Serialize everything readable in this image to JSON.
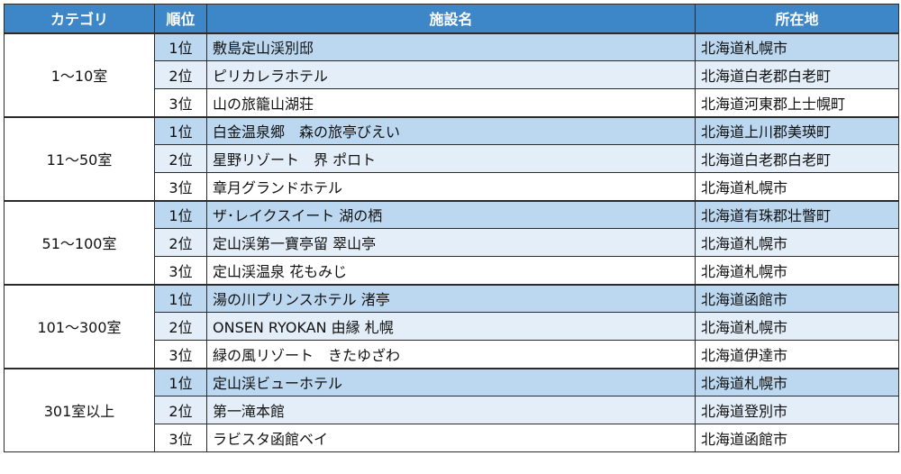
{
  "table": {
    "headers": [
      "カテゴリ",
      "順位",
      "施設名",
      "所在地"
    ],
    "groups": [
      {
        "category": "1～10室",
        "rows": [
          {
            "rank": "1位",
            "name": "敷島定山渓別邸",
            "location": "北海道札幌市"
          },
          {
            "rank": "2位",
            "name": "ピリカレラホテル",
            "location": "北海道白老郡白老町"
          },
          {
            "rank": "3位",
            "name": "山の旅籠山湖荘",
            "location": "北海道河東郡上士幌町"
          }
        ]
      },
      {
        "category": "11～50室",
        "rows": [
          {
            "rank": "1位",
            "name": "白金温泉郷　森の旅亭びえい",
            "location": "北海道上川郡美瑛町"
          },
          {
            "rank": "2位",
            "name": "星野リゾート　界 ポロト",
            "location": "北海道白老郡白老町"
          },
          {
            "rank": "3位",
            "name": "章月グランドホテル",
            "location": "北海道札幌市"
          }
        ]
      },
      {
        "category": "51～100室",
        "rows": [
          {
            "rank": "1位",
            "name": "ザ･レイクスイート 湖の栖",
            "location": "北海道有珠郡壮瞥町"
          },
          {
            "rank": "2位",
            "name": "定山渓第一寶亭留 翠山亭",
            "location": "北海道札幌市"
          },
          {
            "rank": "3位",
            "name": "定山渓温泉 花もみじ",
            "location": "北海道札幌市"
          }
        ]
      },
      {
        "category": "101～300室",
        "rows": [
          {
            "rank": "1位",
            "name": "湯の川プリンスホテル 渚亭",
            "location": "北海道函館市"
          },
          {
            "rank": "2位",
            "name": "ONSEN RYOKAN 由縁 札幌",
            "location": "北海道札幌市"
          },
          {
            "rank": "3位",
            "name": "緑の風リゾート　きたゆざわ",
            "location": "北海道伊達市"
          }
        ]
      },
      {
        "category": "301室以上",
        "rows": [
          {
            "rank": "1位",
            "name": "定山渓ビューホテル",
            "location": "北海道札幌市"
          },
          {
            "rank": "2位",
            "name": "第一滝本館",
            "location": "北海道登別市"
          },
          {
            "rank": "3位",
            "name": "ラビスタ函館ベイ",
            "location": "北海道函館市"
          }
        ]
      }
    ]
  }
}
